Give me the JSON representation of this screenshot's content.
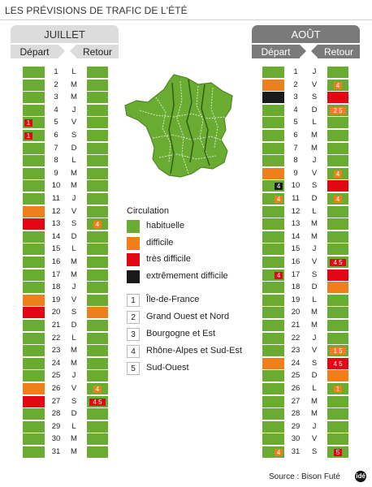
{
  "title": "LES PRÉVISIONS DE TRAFIC DE L'ÉTÉ",
  "months": [
    {
      "name": "JUILLET",
      "depart_label": "Départ",
      "retour_label": "Retour",
      "days": [
        {
          "n": "1",
          "d": "L",
          "dep": "g",
          "depText": "",
          "ret": "g",
          "retText": ""
        },
        {
          "n": "2",
          "d": "M",
          "dep": "g",
          "depText": "",
          "ret": "g",
          "retText": ""
        },
        {
          "n": "3",
          "d": "M",
          "dep": "g",
          "depText": "",
          "ret": "g",
          "retText": ""
        },
        {
          "n": "4",
          "d": "J",
          "dep": "g",
          "depText": "",
          "ret": "g",
          "retText": ""
        },
        {
          "n": "5",
          "d": "V",
          "dep": "g",
          "depText": "1",
          "ret": "g",
          "retText": ""
        },
        {
          "n": "6",
          "d": "S",
          "dep": "g",
          "depText": "1",
          "ret": "g",
          "retText": ""
        },
        {
          "n": "7",
          "d": "D",
          "dep": "g",
          "depText": "",
          "ret": "g",
          "retText": ""
        },
        {
          "n": "8",
          "d": "L",
          "dep": "g",
          "depText": "",
          "ret": "g",
          "retText": ""
        },
        {
          "n": "9",
          "d": "M",
          "dep": "g",
          "depText": "",
          "ret": "g",
          "retText": ""
        },
        {
          "n": "10",
          "d": "M",
          "dep": "g",
          "depText": "",
          "ret": "g",
          "retText": ""
        },
        {
          "n": "11",
          "d": "J",
          "dep": "g",
          "depText": "",
          "ret": "g",
          "retText": ""
        },
        {
          "n": "12",
          "d": "V",
          "dep": "o",
          "depText": "",
          "ret": "g",
          "retText": ""
        },
        {
          "n": "13",
          "d": "S",
          "dep": "r",
          "depText": "",
          "ret": "g",
          "retText": "4"
        },
        {
          "n": "14",
          "d": "D",
          "dep": "g",
          "depText": "",
          "ret": "g",
          "retText": ""
        },
        {
          "n": "15",
          "d": "L",
          "dep": "g",
          "depText": "",
          "ret": "g",
          "retText": ""
        },
        {
          "n": "16",
          "d": "M",
          "dep": "g",
          "depText": "",
          "ret": "g",
          "retText": ""
        },
        {
          "n": "17",
          "d": "M",
          "dep": "g",
          "depText": "",
          "ret": "g",
          "retText": ""
        },
        {
          "n": "18",
          "d": "J",
          "dep": "g",
          "depText": "",
          "ret": "g",
          "retText": ""
        },
        {
          "n": "19",
          "d": "V",
          "dep": "o",
          "depText": "",
          "ret": "g",
          "retText": ""
        },
        {
          "n": "20",
          "d": "S",
          "dep": "r",
          "depText": "",
          "ret": "o",
          "retText": ""
        },
        {
          "n": "21",
          "d": "D",
          "dep": "g",
          "depText": "",
          "ret": "g",
          "retText": ""
        },
        {
          "n": "22",
          "d": "L",
          "dep": "g",
          "depText": "",
          "ret": "g",
          "retText": ""
        },
        {
          "n": "23",
          "d": "M",
          "dep": "g",
          "depText": "",
          "ret": "g",
          "retText": ""
        },
        {
          "n": "24",
          "d": "M",
          "dep": "g",
          "depText": "",
          "ret": "g",
          "retText": ""
        },
        {
          "n": "25",
          "d": "J",
          "dep": "g",
          "depText": "",
          "ret": "g",
          "retText": ""
        },
        {
          "n": "26",
          "d": "V",
          "dep": "o",
          "depText": "",
          "ret": "g",
          "retText": "4"
        },
        {
          "n": "27",
          "d": "S",
          "dep": "r",
          "depText": "",
          "ret": "g",
          "retText": "4 5"
        },
        {
          "n": "28",
          "d": "D",
          "dep": "g",
          "depText": "",
          "ret": "g",
          "retText": ""
        },
        {
          "n": "29",
          "d": "L",
          "dep": "g",
          "depText": "",
          "ret": "g",
          "retText": ""
        },
        {
          "n": "30",
          "d": "M",
          "dep": "g",
          "depText": "",
          "ret": "g",
          "retText": ""
        },
        {
          "n": "31",
          "d": "M",
          "dep": "g",
          "depText": "",
          "ret": "g",
          "retText": ""
        }
      ]
    },
    {
      "name": "AOÛT",
      "depart_label": "Départ",
      "retour_label": "Retour",
      "days": [
        {
          "n": "1",
          "d": "J",
          "dep": "g",
          "depText": "",
          "ret": "g",
          "retText": ""
        },
        {
          "n": "2",
          "d": "V",
          "dep": "o",
          "depText": "",
          "ret": "g",
          "retText": "4"
        },
        {
          "n": "3",
          "d": "S",
          "dep": "b",
          "depText": "",
          "ret": "r",
          "retText": ""
        },
        {
          "n": "4",
          "d": "D",
          "dep": "g",
          "depText": "",
          "ret": "g",
          "retText": "2 5"
        },
        {
          "n": "5",
          "d": "L",
          "dep": "g",
          "depText": "",
          "ret": "g",
          "retText": ""
        },
        {
          "n": "6",
          "d": "M",
          "dep": "g",
          "depText": "",
          "ret": "g",
          "retText": ""
        },
        {
          "n": "7",
          "d": "M",
          "dep": "g",
          "depText": "",
          "ret": "g",
          "retText": ""
        },
        {
          "n": "8",
          "d": "J",
          "dep": "g",
          "depText": "",
          "ret": "g",
          "retText": ""
        },
        {
          "n": "9",
          "d": "V",
          "dep": "o",
          "depText": "",
          "ret": "g",
          "retText": "4"
        },
        {
          "n": "10",
          "d": "S",
          "dep": "g",
          "depText": "4",
          "ret": "r",
          "retText": ""
        },
        {
          "n": "11",
          "d": "D",
          "dep": "g",
          "depText": "4",
          "ret": "g",
          "retText": "4"
        },
        {
          "n": "12",
          "d": "L",
          "dep": "g",
          "depText": "",
          "ret": "g",
          "retText": ""
        },
        {
          "n": "13",
          "d": "M",
          "dep": "g",
          "depText": "",
          "ret": "g",
          "retText": ""
        },
        {
          "n": "14",
          "d": "M",
          "dep": "g",
          "depText": "",
          "ret": "g",
          "retText": ""
        },
        {
          "n": "15",
          "d": "J",
          "dep": "g",
          "depText": "",
          "ret": "g",
          "retText": ""
        },
        {
          "n": "16",
          "d": "V",
          "dep": "g",
          "depText": "",
          "ret": "g",
          "retText": "4 5"
        },
        {
          "n": "17",
          "d": "S",
          "dep": "g",
          "depText": "4",
          "ret": "r",
          "retText": ""
        },
        {
          "n": "18",
          "d": "D",
          "dep": "g",
          "depText": "",
          "ret": "o",
          "retText": ""
        },
        {
          "n": "19",
          "d": "L",
          "dep": "g",
          "depText": "",
          "ret": "g",
          "retText": ""
        },
        {
          "n": "20",
          "d": "M",
          "dep": "g",
          "depText": "",
          "ret": "g",
          "retText": ""
        },
        {
          "n": "21",
          "d": "M",
          "dep": "g",
          "depText": "",
          "ret": "g",
          "retText": ""
        },
        {
          "n": "22",
          "d": "J",
          "dep": "g",
          "depText": "",
          "ret": "g",
          "retText": ""
        },
        {
          "n": "23",
          "d": "V",
          "dep": "g",
          "depText": "",
          "ret": "g",
          "retText": "1 5"
        },
        {
          "n": "24",
          "d": "S",
          "dep": "o",
          "depText": "",
          "ret": "r",
          "retText": "4 5"
        },
        {
          "n": "25",
          "d": "D",
          "dep": "g",
          "depText": "",
          "ret": "o",
          "retText": ""
        },
        {
          "n": "26",
          "d": "L",
          "dep": "g",
          "depText": "",
          "ret": "g",
          "retText": "1"
        },
        {
          "n": "27",
          "d": "M",
          "dep": "g",
          "depText": "",
          "ret": "g",
          "retText": ""
        },
        {
          "n": "28",
          "d": "M",
          "dep": "g",
          "depText": "",
          "ret": "g",
          "retText": ""
        },
        {
          "n": "29",
          "d": "J",
          "dep": "g",
          "depText": "",
          "ret": "g",
          "retText": ""
        },
        {
          "n": "30",
          "d": "V",
          "dep": "g",
          "depText": "",
          "ret": "g",
          "retText": ""
        },
        {
          "n": "31",
          "d": "S",
          "dep": "g",
          "depText": "4",
          "ret": "g",
          "retText": "5"
        }
      ]
    }
  ],
  "legend": {
    "title": "Circulation",
    "items": [
      {
        "key": "g",
        "label": "habituelle",
        "color": "#6aab32"
      },
      {
        "key": "o",
        "label": "difficile",
        "color": "#ef7f1a"
      },
      {
        "key": "r",
        "label": "très difficile",
        "color": "#e30613"
      },
      {
        "key": "b",
        "label": "extrêmement difficile",
        "color": "#1a1a1a"
      }
    ]
  },
  "regions": [
    {
      "num": "1",
      "label": "Île-de-France"
    },
    {
      "num": "2",
      "label": "Grand Ouest et Nord"
    },
    {
      "num": "3",
      "label": "Bourgogne et Est"
    },
    {
      "num": "4",
      "label": "Rhône-Alpes et Sud-Est"
    },
    {
      "num": "5",
      "label": "Sud-Ouest"
    }
  ],
  "source": "Source : Bison Futé",
  "logo_text": "idé",
  "map_icon": "france-map-icon"
}
